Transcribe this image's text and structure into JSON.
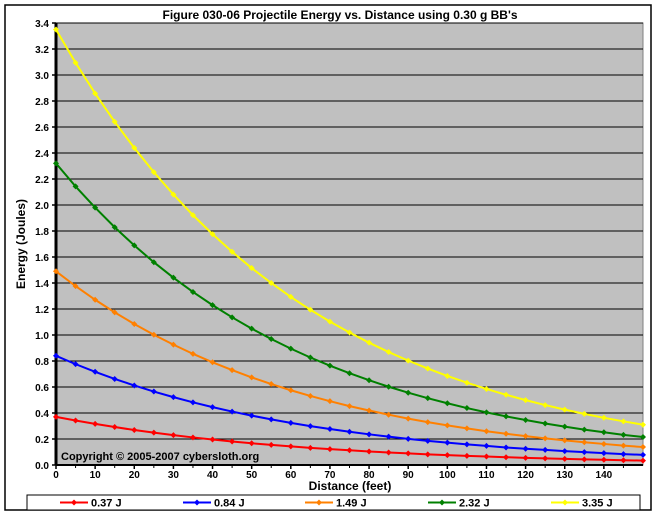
{
  "chart_data": {
    "type": "line",
    "title": "Figure 030-06  Projectile Energy vs. Distance using 0.30 g BB's",
    "xlabel": "Distance (feet)",
    "ylabel": "Energy (Joules)",
    "xlim": [
      0,
      150
    ],
    "ylim": [
      0,
      3.4
    ],
    "xticks": [
      0,
      10,
      20,
      30,
      40,
      50,
      60,
      70,
      80,
      90,
      100,
      110,
      120,
      130,
      140
    ],
    "yticks": [
      "0.0",
      "0.2",
      "0.4",
      "0.6",
      "0.8",
      "1.0",
      "1.2",
      "1.4",
      "1.6",
      "1.8",
      "2.0",
      "2.2",
      "2.4",
      "2.6",
      "2.8",
      "3.0",
      "3.2",
      "3.4"
    ],
    "grid": "horizontal",
    "legend_position": "bottom",
    "annotation": "Copyright © 2005-2007 cybersloth.org",
    "plot_background": "#c0c0c0",
    "x": [
      0,
      5,
      10,
      15,
      20,
      25,
      30,
      35,
      40,
      45,
      50,
      55,
      60,
      65,
      70,
      75,
      80,
      85,
      90,
      95,
      100,
      105,
      110,
      115,
      120,
      125,
      130,
      135,
      140,
      145,
      150
    ],
    "series": [
      {
        "name": "0.37 J",
        "color": "#ff0000",
        "values": [
          0.37,
          0.342,
          0.316,
          0.292,
          0.269,
          0.249,
          0.23,
          0.212,
          0.196,
          0.181,
          0.167,
          0.155,
          0.143,
          0.132,
          0.122,
          0.113,
          0.104,
          0.096,
          0.089,
          0.082,
          0.076,
          0.07,
          0.065,
          0.06,
          0.055,
          0.051,
          0.047,
          0.043,
          0.04,
          0.037,
          0.034
        ]
      },
      {
        "name": "0.84 J",
        "color": "#0000ff",
        "values": [
          0.84,
          0.776,
          0.717,
          0.662,
          0.612,
          0.565,
          0.522,
          0.482,
          0.445,
          0.411,
          0.38,
          0.351,
          0.324,
          0.299,
          0.277,
          0.256,
          0.236,
          0.218,
          0.201,
          0.186,
          0.172,
          0.159,
          0.147,
          0.135,
          0.125,
          0.116,
          0.107,
          0.099,
          0.091,
          0.084,
          0.078
        ]
      },
      {
        "name": "1.49 J",
        "color": "#ff8000",
        "values": [
          1.49,
          1.376,
          1.271,
          1.174,
          1.085,
          1.002,
          0.926,
          0.855,
          0.79,
          0.73,
          0.674,
          0.623,
          0.575,
          0.531,
          0.491,
          0.453,
          0.419,
          0.387,
          0.357,
          0.33,
          0.305,
          0.282,
          0.26,
          0.24,
          0.222,
          0.205,
          0.189,
          0.175,
          0.162,
          0.149,
          0.138
        ]
      },
      {
        "name": "2.32 J",
        "color": "#008000",
        "values": [
          2.32,
          2.143,
          1.98,
          1.829,
          1.689,
          1.56,
          1.441,
          1.331,
          1.23,
          1.136,
          1.049,
          0.969,
          0.895,
          0.827,
          0.764,
          0.706,
          0.652,
          0.602,
          0.556,
          0.514,
          0.475,
          0.438,
          0.405,
          0.374,
          0.346,
          0.319,
          0.295,
          0.272,
          0.252,
          0.232,
          0.215
        ]
      },
      {
        "name": "3.35 J",
        "color": "#ffff00",
        "values": [
          3.35,
          3.094,
          2.858,
          2.64,
          2.439,
          2.253,
          2.081,
          1.922,
          1.776,
          1.64,
          1.515,
          1.4,
          1.293,
          1.194,
          1.103,
          1.019,
          0.941,
          0.869,
          0.803,
          0.742,
          0.685,
          0.633,
          0.585,
          0.54,
          0.499,
          0.461,
          0.426,
          0.393,
          0.363,
          0.336,
          0.31
        ]
      }
    ]
  }
}
